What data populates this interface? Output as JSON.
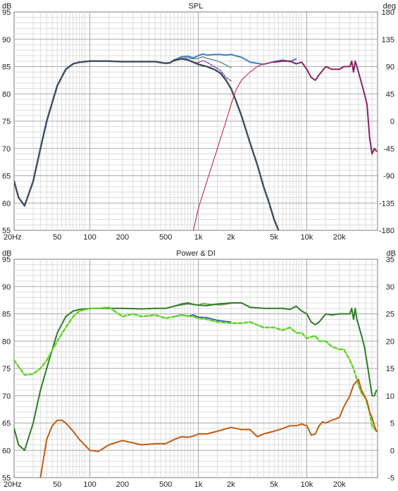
{
  "chart_data": [
    {
      "type": "line",
      "title": "SPL",
      "left_unit": "dB",
      "right_unit": "deg",
      "xscale": "log",
      "xlim": [
        20,
        45000
      ],
      "ylim": [
        55,
        95
      ],
      "y2lim": [
        -180,
        180
      ],
      "x_tick_labels": [
        {
          "f": 20,
          "label": "20Hz"
        },
        {
          "f": 50,
          "label": "50"
        },
        {
          "f": 100,
          "label": "100"
        },
        {
          "f": 200,
          "label": "200"
        },
        {
          "f": 500,
          "label": "500"
        },
        {
          "f": 1000,
          "label": "1k"
        },
        {
          "f": 2000,
          "label": "2k"
        },
        {
          "f": 5000,
          "label": "5k"
        },
        {
          "f": 10000,
          "label": "10k"
        },
        {
          "f": 20000,
          "label": "20k"
        }
      ],
      "y_ticks": [
        55,
        60,
        65,
        70,
        75,
        80,
        85,
        90,
        95
      ],
      "y2_ticks": [
        -180,
        -135,
        -90,
        -45,
        0,
        45,
        90,
        135,
        180
      ],
      "grid": true,
      "series": [
        {
          "axis": "y",
          "color": "#3f7fc4",
          "dash": "",
          "width": 2,
          "x": [
            20,
            22,
            25,
            30,
            35,
            40,
            50,
            60,
            70,
            80,
            100,
            150,
            200,
            300,
            400,
            500,
            550,
            600,
            700,
            800,
            900,
            1000,
            1100,
            1200,
            1400,
            1600,
            1800,
            2000,
            2500,
            3000,
            3500,
            4000,
            5000,
            6000,
            7000,
            8000
          ],
          "y": [
            64,
            61,
            59.5,
            64,
            70,
            75,
            81.5,
            84.5,
            85.5,
            85.8,
            86,
            86,
            85.9,
            85.9,
            85.9,
            85.6,
            85.7,
            86.2,
            86.8,
            86.9,
            86.6,
            87,
            87.3,
            87.1,
            87.2,
            87.2,
            87.1,
            87.2,
            86.7,
            85.8,
            85.6,
            85.4,
            85.9,
            86.2,
            85.9,
            86.4
          ]
        },
        {
          "axis": "y",
          "color": "#7e44b0",
          "dash": "3 2",
          "width": 1.5,
          "x": [
            600,
            700,
            800,
            900,
            1000,
            1100,
            1200,
            1400,
            1600,
            1800,
            2000
          ],
          "y": [
            86,
            86.5,
            86.3,
            85.8,
            85.7,
            86.1,
            85.8,
            85,
            84.3,
            83,
            82.4
          ]
        },
        {
          "axis": "y",
          "color": "#6a8f8f",
          "dash": "",
          "width": 1.5,
          "x": [
            600,
            700,
            800,
            900,
            1000,
            1100,
            1200,
            1400,
            1600,
            1800,
            2000
          ],
          "y": [
            86,
            86.5,
            86.6,
            86.4,
            86.5,
            86.8,
            86.5,
            86.2,
            85.8,
            85.3,
            84.8
          ]
        },
        {
          "axis": "y",
          "color": "#404f5d",
          "dash": "2 1.5",
          "width": 2.5,
          "x": [
            20,
            22,
            25,
            30,
            35,
            40,
            50,
            60,
            70,
            80,
            100,
            150,
            200,
            300,
            400,
            500,
            550,
            600,
            700,
            800,
            900,
            1000,
            1200,
            1400,
            1600,
            1800,
            2000,
            2200,
            2500,
            3000,
            3500,
            4000,
            4500,
            5000,
            5500
          ],
          "y": [
            64,
            61,
            59.5,
            64,
            70,
            75,
            81.5,
            84.5,
            85.5,
            85.8,
            86,
            86,
            85.9,
            85.9,
            85.9,
            85.6,
            85.7,
            86.2,
            86.4,
            86.2,
            85.8,
            85.4,
            85,
            84.5,
            83.8,
            82.5,
            81,
            79,
            76,
            71,
            67,
            63,
            60,
            57,
            55
          ]
        },
        {
          "axis": "y",
          "color": "#c4143c",
          "dash": "",
          "width": 1,
          "x": [
            900,
            1000,
            1200,
            1500,
            1800,
            2000,
            2200,
            2500,
            3000,
            3500,
            4000,
            5000
          ],
          "y": [
            55,
            59,
            64,
            70,
            75,
            78,
            80.5,
            82.5,
            84,
            85,
            85.5,
            85.8
          ]
        },
        {
          "axis": "y",
          "color": "#8b2060",
          "dash": "",
          "width": 2,
          "x": [
            5000,
            6000,
            7000,
            8000,
            9000,
            10000,
            11000,
            12000,
            13000,
            15000,
            17000,
            20000,
            22000,
            25000,
            26000,
            27000,
            28000,
            29000,
            30000,
            32000,
            34000,
            36000,
            38000,
            40000,
            42000,
            44000
          ],
          "y": [
            85.8,
            86,
            86,
            85.5,
            85.8,
            84.5,
            83,
            82.5,
            83.5,
            85,
            84.5,
            84.5,
            85,
            85,
            86,
            84,
            86,
            85,
            84,
            82,
            80,
            78,
            72,
            69,
            70,
            69.5
          ]
        }
      ]
    },
    {
      "type": "line",
      "title": "Power & DI",
      "left_unit": "dB",
      "right_unit": "dB",
      "xscale": "log",
      "xlim": [
        20,
        45000
      ],
      "ylim": [
        55,
        95
      ],
      "y2lim": [
        -5,
        35
      ],
      "x_tick_labels": [
        {
          "f": 20,
          "label": "20Hz"
        },
        {
          "f": 50,
          "label": "50"
        },
        {
          "f": 100,
          "label": "100"
        },
        {
          "f": 200,
          "label": "200"
        },
        {
          "f": 500,
          "label": "500"
        },
        {
          "f": 1000,
          "label": "1k"
        },
        {
          "f": 2000,
          "label": "2k"
        },
        {
          "f": 5000,
          "label": "5k"
        },
        {
          "f": 10000,
          "label": "10k"
        },
        {
          "f": 20000,
          "label": "20k"
        }
      ],
      "y_ticks": [
        55,
        60,
        65,
        70,
        75,
        80,
        85,
        90,
        95
      ],
      "y2_ticks": [
        -5,
        0,
        5,
        10,
        15,
        20,
        25,
        30,
        35
      ],
      "grid": true,
      "series": [
        {
          "axis": "y",
          "color": "#7a9a6a",
          "dash": "",
          "width": 1.5,
          "x": [
            500,
            600,
            700,
            800,
            900,
            1000,
            1100,
            1200,
            1400,
            1600,
            2000
          ],
          "y": [
            86,
            86.4,
            86.6,
            86.8,
            86.7,
            86.6,
            86.9,
            86.8,
            86.7,
            86.6,
            86.9
          ]
        },
        {
          "axis": "y",
          "color": "#2e7d24",
          "dash": "",
          "width": 2,
          "x": [
            20,
            22,
            25,
            30,
            35,
            40,
            50,
            60,
            70,
            80,
            100,
            150,
            200,
            300,
            400,
            500,
            600,
            700,
            800,
            900,
            1000,
            1200,
            1500,
            2000,
            2500,
            3000,
            4000,
            5000,
            6000,
            7000,
            8000,
            9000,
            10000,
            11000,
            12000,
            13000,
            15000,
            17000,
            20000,
            22000,
            25000,
            26000,
            27000,
            28000,
            29000,
            30000,
            32000,
            34000,
            36000,
            38000,
            40000,
            42000,
            44000
          ],
          "y": [
            64,
            61,
            60,
            65,
            71,
            75,
            81.5,
            84.5,
            85.5,
            85.8,
            86,
            86,
            86,
            85.9,
            86,
            86,
            86.4,
            86.8,
            87,
            86.7,
            86.6,
            86.5,
            86.8,
            87,
            87,
            86.2,
            86,
            86,
            86,
            85.8,
            86.4,
            85.5,
            85,
            83.5,
            83,
            83.5,
            85,
            84.8,
            85,
            85,
            85,
            86,
            84,
            86,
            84,
            83,
            81,
            79,
            76,
            73,
            70,
            70,
            71
          ]
        },
        {
          "axis": "y",
          "color": "#2a3ec8",
          "dash": "",
          "width": 1.5,
          "x": [
            600,
            700,
            800,
            900,
            1000,
            1200,
            1500,
            2000
          ],
          "y": [
            84.5,
            84.8,
            84.6,
            84.8,
            84.4,
            84.3,
            83.8,
            83.5
          ]
        },
        {
          "axis": "y",
          "color": "#63d22a",
          "dash": "5 3",
          "width": 2.5,
          "x": [
            20,
            25,
            30,
            35,
            40,
            50,
            60,
            70,
            80,
            100,
            120,
            150,
            200,
            250,
            300,
            400,
            500,
            600,
            700,
            800,
            900,
            1000,
            1200,
            1500,
            2000,
            2500,
            3000,
            4000,
            5000,
            6000,
            7000,
            8000,
            9000,
            10000,
            12000,
            13000,
            15000,
            17000,
            20000,
            22000,
            25000,
            27000,
            30000,
            32000,
            35000,
            38000,
            40000,
            42000,
            44000
          ],
          "y": [
            76.5,
            73.8,
            74,
            75,
            76.5,
            80,
            82.5,
            84.5,
            85.5,
            86,
            86,
            86.2,
            84.5,
            85,
            84.5,
            84.8,
            84.2,
            84.5,
            84.8,
            84.6,
            84.5,
            84.2,
            84,
            83.5,
            83.3,
            83.3,
            83.5,
            82.5,
            82.5,
            82,
            82.5,
            81.5,
            81.5,
            80.5,
            81,
            80,
            80,
            79,
            78.5,
            78.5,
            76.5,
            75,
            72,
            70.5,
            69.5,
            67,
            64.5,
            64,
            63.5
          ]
        },
        {
          "axis": "y",
          "color": "#c25a10",
          "dash": "",
          "width": 2,
          "x": [
            35,
            40,
            45,
            50,
            55,
            60,
            70,
            80,
            100,
            120,
            150,
            200,
            300,
            400,
            500,
            600,
            700,
            800,
            900,
            1000,
            1200,
            1500,
            2000,
            2500,
            3000,
            3500,
            4000,
            5000,
            6000,
            7000,
            8000,
            9000,
            10000,
            11000,
            12000,
            13000,
            14000,
            15000,
            17000,
            20000,
            22000,
            25000,
            27000,
            30000,
            32000,
            34000,
            36000,
            38000,
            40000,
            42000,
            44000
          ],
          "y": [
            55,
            62,
            64.5,
            65.5,
            65.5,
            65,
            63.5,
            62,
            60,
            59.8,
            61,
            61.8,
            61,
            61.2,
            61.2,
            62,
            62.5,
            62.4,
            62.6,
            63,
            63,
            63.5,
            64.2,
            63.8,
            63.8,
            62.5,
            63,
            63.5,
            64,
            64.5,
            64.5,
            64.8,
            64.5,
            62.8,
            63,
            64.5,
            65.2,
            65,
            65.5,
            66,
            68,
            70,
            72,
            73,
            71,
            70,
            69,
            67,
            66,
            64.5,
            63.5
          ]
        }
      ]
    }
  ]
}
